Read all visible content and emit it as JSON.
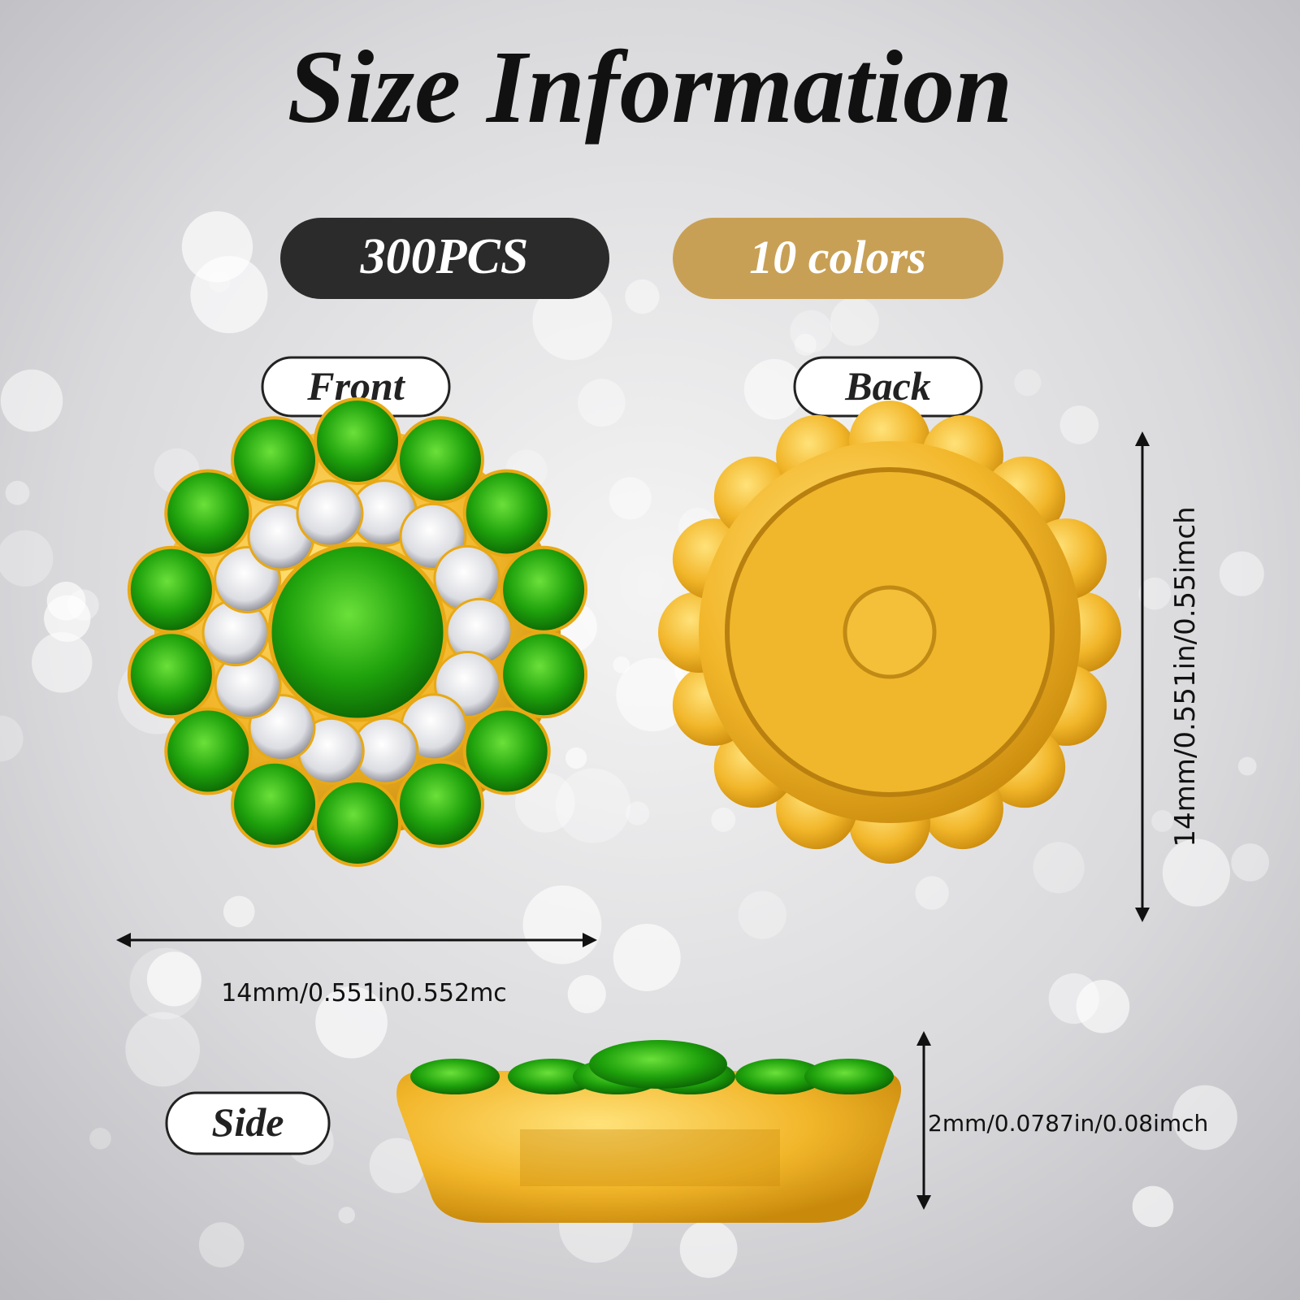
{
  "header": {
    "title": "Size Information",
    "badges": [
      "300PCS",
      "10 colors"
    ]
  },
  "views": {
    "front": "Front",
    "back": "Back",
    "side": "Side"
  },
  "dimensions": {
    "width": "14mm/0.551in0.552mc",
    "height": "14mm/0.551in/0.55imch",
    "thickness": "2mm/0.0787in/0.08imch"
  }
}
